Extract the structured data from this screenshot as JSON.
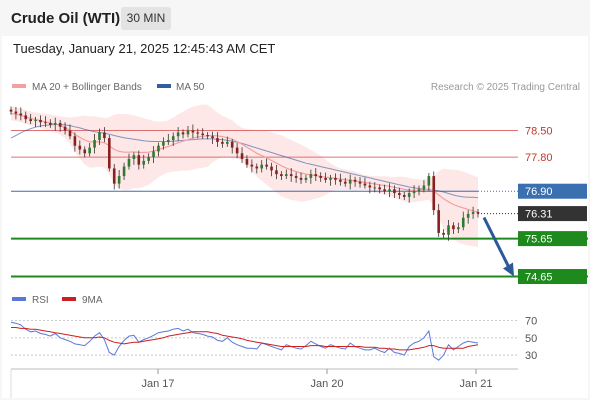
{
  "header": {
    "title": "Crude Oil (WTI)",
    "timeframe": "30 MIN",
    "timestamp": "Tuesday, January 21, 2025 12:45:43 AM CET"
  },
  "legend": {
    "bollinger_label": "MA 20 + Bollinger Bands",
    "ma50_label": "MA 50",
    "credit": "Research © 2025 Trading Central"
  },
  "rsi_legend": {
    "rsi_label": "RSI",
    "ma9_label": "9MA"
  },
  "colors": {
    "bollinger": "#f4a0a0",
    "bollinger_band_fill": "#fde4e4",
    "ma50": "#2f5fa0",
    "resistance": "#e07070",
    "pivot": "#3a6fb0",
    "support": "#1e8a1e",
    "current_price": "#333333",
    "candle_up": "#2f7a2f",
    "candle_down": "#8a1f1f",
    "rsi": "#5a78d8",
    "rsi_ma": "#cc1f1f",
    "arrow": "#2a5a98"
  },
  "chart_data": {
    "type": "candlestick",
    "instrument": "Crude Oil (WTI)",
    "interval": "30 MIN",
    "x_tick_labels": [
      "Jan 17",
      "Jan 20",
      "Jan 21"
    ],
    "ylim": [
      74.4,
      79.2
    ],
    "levels": [
      {
        "value": 78.5,
        "label": "78.50",
        "kind": "resistance"
      },
      {
        "value": 77.8,
        "label": "77.80",
        "kind": "resistance"
      },
      {
        "value": 76.9,
        "label": "76.90",
        "kind": "pivot"
      },
      {
        "value": 76.31,
        "label": "76.31",
        "kind": "current"
      },
      {
        "value": 75.65,
        "label": "75.65",
        "kind": "support"
      },
      {
        "value": 74.65,
        "label": "74.65",
        "kind": "support"
      }
    ],
    "forecast_arrow": {
      "from": 76.31,
      "to": 74.65
    },
    "close_series": [
      79.0,
      78.95,
      78.9,
      78.8,
      78.75,
      78.78,
      78.72,
      78.7,
      78.65,
      78.7,
      78.6,
      78.5,
      78.35,
      78.1,
      78.0,
      77.9,
      78.05,
      78.25,
      78.45,
      78.3,
      77.5,
      77.1,
      77.3,
      77.55,
      77.75,
      77.85,
      77.6,
      77.7,
      77.8,
      77.95,
      78.1,
      78.2,
      78.25,
      78.35,
      78.45,
      78.4,
      78.5,
      78.45,
      78.42,
      78.38,
      78.35,
      78.3,
      78.2,
      78.15,
      78.2,
      78.05,
      77.9,
      77.75,
      77.6,
      77.55,
      77.5,
      77.6,
      77.55,
      77.45,
      77.35,
      77.3,
      77.35,
      77.3,
      77.25,
      77.2,
      77.25,
      77.35,
      77.3,
      77.25,
      77.2,
      77.25,
      77.2,
      77.15,
      77.1,
      77.2,
      77.15,
      77.1,
      77.05,
      77.0,
      77.0,
      76.95,
      76.9,
      76.95,
      76.85,
      76.8,
      76.75,
      76.85,
      76.9,
      76.95,
      77.05,
      77.3,
      76.4,
      75.8,
      75.75,
      76.0,
      75.9,
      75.95,
      76.2,
      76.3,
      76.35,
      76.31
    ],
    "ma20_series": [
      78.95,
      78.93,
      78.9,
      78.86,
      78.82,
      78.79,
      78.76,
      78.73,
      78.7,
      78.67,
      78.63,
      78.58,
      78.5,
      78.4,
      78.32,
      78.25,
      78.2,
      78.2,
      78.2,
      78.18,
      78.1,
      78.0,
      77.95,
      77.93,
      77.93,
      77.94,
      77.92,
      77.92,
      77.93,
      77.96,
      78.0,
      78.04,
      78.08,
      78.13,
      78.18,
      78.22,
      78.26,
      78.3,
      78.33,
      78.35,
      78.36,
      78.37,
      78.36,
      78.34,
      78.31,
      78.27,
      78.21,
      78.14,
      78.06,
      77.98,
      77.9,
      77.84,
      77.78,
      77.71,
      77.64,
      77.57,
      77.51,
      77.46,
      77.42,
      77.38,
      77.35,
      77.33,
      77.31,
      77.29,
      77.27,
      77.26,
      77.24,
      77.22,
      77.2,
      77.19,
      77.17,
      77.15,
      77.13,
      77.11,
      77.09,
      77.07,
      77.05,
      77.03,
      77.0,
      76.98,
      76.95,
      76.93,
      76.92,
      76.92,
      76.93,
      76.96,
      76.9,
      76.8,
      76.7,
      76.62,
      76.55,
      76.5,
      76.46,
      76.42,
      76.38,
      76.35
    ],
    "ma50_series": [
      78.3,
      78.37,
      78.44,
      78.5,
      78.55,
      78.59,
      78.62,
      78.64,
      78.65,
      78.66,
      78.66,
      78.65,
      78.63,
      78.6,
      78.57,
      78.53,
      78.5,
      78.47,
      78.45,
      78.43,
      78.4,
      78.37,
      78.34,
      78.31,
      78.29,
      78.27,
      78.25,
      78.23,
      78.22,
      78.21,
      78.21,
      78.21,
      78.21,
      78.22,
      78.23,
      78.24,
      78.25,
      78.26,
      78.27,
      78.28,
      78.28,
      78.28,
      78.27,
      78.26,
      78.24,
      78.22,
      78.19,
      78.16,
      78.12,
      78.08,
      78.04,
      78.0,
      77.96,
      77.92,
      77.88,
      77.84,
      77.8,
      77.76,
      77.72,
      77.68,
      77.64,
      77.61,
      77.58,
      77.55,
      77.52,
      77.49,
      77.46,
      77.43,
      77.4,
      77.37,
      77.34,
      77.31,
      77.28,
      77.25,
      77.22,
      77.19,
      77.16,
      77.13,
      77.1,
      77.07,
      77.04,
      77.01,
      76.99,
      76.97,
      76.95,
      76.94,
      76.93,
      76.91,
      76.88,
      76.84,
      76.8,
      76.77,
      76.75,
      76.74,
      76.74,
      76.73
    ],
    "rsi_panel": {
      "levels": [
        70,
        50,
        30
      ],
      "ylim": [
        15,
        80
      ],
      "rsi_series": [
        68,
        67,
        65,
        60,
        57,
        58,
        55,
        54,
        52,
        55,
        50,
        48,
        46,
        43,
        42,
        41,
        46,
        52,
        56,
        48,
        33,
        30,
        40,
        47,
        52,
        53,
        45,
        48,
        50,
        53,
        56,
        57,
        58,
        60,
        61,
        58,
        60,
        56,
        55,
        54,
        52,
        51,
        47,
        46,
        50,
        45,
        42,
        40,
        38,
        38,
        37,
        44,
        42,
        40,
        38,
        36,
        42,
        40,
        38,
        37,
        41,
        46,
        43,
        40,
        38,
        42,
        40,
        38,
        37,
        44,
        40,
        38,
        36,
        36,
        38,
        35,
        33,
        38,
        33,
        32,
        30,
        40,
        44,
        46,
        50,
        58,
        28,
        24,
        30,
        42,
        36,
        40,
        44,
        46,
        45,
        44
      ],
      "ma9_series": [
        62,
        62,
        61,
        61,
        60,
        60,
        59,
        58,
        57,
        56,
        55,
        54,
        53,
        52,
        51,
        50,
        50,
        50,
        51,
        50,
        47,
        45,
        44,
        43,
        44,
        45,
        45,
        46,
        47,
        48,
        49,
        50,
        52,
        53,
        54,
        55,
        56,
        57,
        57,
        57,
        57,
        56,
        55,
        53,
        52,
        51,
        50,
        49,
        47,
        46,
        45,
        44,
        43,
        42,
        41,
        40,
        40,
        40,
        40,
        40,
        40,
        41,
        41,
        41,
        40,
        40,
        40,
        40,
        40,
        40,
        40,
        40,
        39,
        39,
        39,
        38,
        38,
        37,
        37,
        36,
        36,
        36,
        37,
        38,
        39,
        41,
        41,
        39,
        38,
        38,
        38,
        38,
        38,
        40,
        41,
        42
      ]
    }
  }
}
